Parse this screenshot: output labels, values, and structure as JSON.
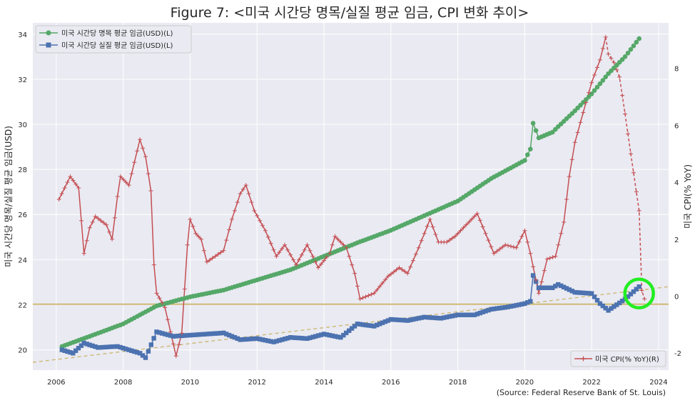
{
  "chart_data": {
    "type": "line",
    "title": "Figure 7: <미국 시간당 명목/실질 평균 임금, CPI 변화 추이>",
    "source": "(Source: Federal Reserve Bank of St. Louis)",
    "xlabel": "",
    "ylabel_left": "미국 시간당 명목/실질 평균 임금(USD)",
    "ylabel_right": "미국 CPI(% YoY)",
    "xlim": [
      2005.3,
      2024.3
    ],
    "ylim_left": [
      19.1,
      34.5
    ],
    "ylim_right": [
      -2.6,
      9.6
    ],
    "x_ticks": [
      2006,
      2008,
      2010,
      2012,
      2014,
      2016,
      2018,
      2020,
      2022,
      2024
    ],
    "y_ticks_left": [
      20,
      22,
      24,
      26,
      28,
      30,
      32,
      34
    ],
    "y_ticks_right": [
      -2,
      0,
      2,
      4,
      6,
      8
    ],
    "grid": true,
    "colors": {
      "nominal": "#55a868",
      "real": "#4c72b0",
      "cpi": "#c44e52",
      "trend": "#ccb974",
      "highlight": "#22ee22",
      "plot_bg": "#eaeaf2"
    },
    "legend_top_left": [
      "미국 시간당 명목 평균 임금(USD)(L)",
      "미국 시간당 실질 평균 임금(USD)(L)"
    ],
    "legend_bottom_right": [
      "미국 CPI(% YoY)(R)"
    ],
    "series": [
      {
        "name": "미국 시간당 명목 평균 임금(USD)(L)",
        "axis": "left",
        "marker": "circle",
        "points": [
          [
            2006.17,
            20.15
          ],
          [
            2007.0,
            20.6
          ],
          [
            2008.0,
            21.15
          ],
          [
            2009.0,
            21.95
          ],
          [
            2010.0,
            22.35
          ],
          [
            2011.0,
            22.65
          ],
          [
            2012.0,
            23.1
          ],
          [
            2013.0,
            23.55
          ],
          [
            2014.0,
            24.15
          ],
          [
            2015.0,
            24.75
          ],
          [
            2016.0,
            25.3
          ],
          [
            2017.0,
            25.95
          ],
          [
            2018.0,
            26.6
          ],
          [
            2019.0,
            27.6
          ],
          [
            2020.0,
            28.4
          ],
          [
            2020.17,
            28.9
          ],
          [
            2020.25,
            30.05
          ],
          [
            2020.42,
            29.4
          ],
          [
            2020.83,
            29.65
          ],
          [
            2021.0,
            29.9
          ],
          [
            2021.5,
            30.6
          ],
          [
            2022.0,
            31.35
          ],
          [
            2022.5,
            32.25
          ],
          [
            2023.0,
            33.0
          ],
          [
            2023.42,
            33.8
          ]
        ]
      },
      {
        "name": "미국 시간당 실질 평균 임금(USD)(L)",
        "axis": "left",
        "marker": "square",
        "points": [
          [
            2006.17,
            20.0
          ],
          [
            2006.5,
            19.85
          ],
          [
            2006.83,
            20.3
          ],
          [
            2007.25,
            20.1
          ],
          [
            2007.83,
            20.15
          ],
          [
            2008.5,
            19.85
          ],
          [
            2008.67,
            19.65
          ],
          [
            2009.0,
            20.8
          ],
          [
            2009.5,
            20.6
          ],
          [
            2010.0,
            20.65
          ],
          [
            2010.5,
            20.7
          ],
          [
            2011.0,
            20.75
          ],
          [
            2011.5,
            20.45
          ],
          [
            2012.0,
            20.5
          ],
          [
            2012.5,
            20.35
          ],
          [
            2013.0,
            20.55
          ],
          [
            2013.5,
            20.5
          ],
          [
            2014.0,
            20.7
          ],
          [
            2014.5,
            20.55
          ],
          [
            2015.0,
            21.15
          ],
          [
            2015.5,
            21.05
          ],
          [
            2016.0,
            21.35
          ],
          [
            2016.5,
            21.3
          ],
          [
            2017.0,
            21.45
          ],
          [
            2017.5,
            21.4
          ],
          [
            2018.0,
            21.55
          ],
          [
            2018.5,
            21.55
          ],
          [
            2019.0,
            21.8
          ],
          [
            2019.5,
            21.9
          ],
          [
            2020.0,
            22.05
          ],
          [
            2020.17,
            22.15
          ],
          [
            2020.25,
            23.3
          ],
          [
            2020.42,
            22.75
          ],
          [
            2020.83,
            22.75
          ],
          [
            2021.0,
            22.9
          ],
          [
            2021.5,
            22.55
          ],
          [
            2022.0,
            22.5
          ],
          [
            2022.25,
            22.05
          ],
          [
            2022.5,
            21.75
          ],
          [
            2023.0,
            22.25
          ],
          [
            2023.42,
            22.8
          ]
        ]
      },
      {
        "name": "미국 CPI(% YoY)(R)",
        "axis": "right",
        "marker": "plus",
        "points": [
          [
            2006.08,
            3.4
          ],
          [
            2006.42,
            4.2
          ],
          [
            2006.67,
            3.8
          ],
          [
            2006.83,
            1.5
          ],
          [
            2007.0,
            2.4
          ],
          [
            2007.17,
            2.8
          ],
          [
            2007.5,
            2.5
          ],
          [
            2007.67,
            2.0
          ],
          [
            2007.83,
            3.5
          ],
          [
            2007.92,
            4.2
          ],
          [
            2008.17,
            3.9
          ],
          [
            2008.5,
            5.5
          ],
          [
            2008.67,
            4.9
          ],
          [
            2008.83,
            3.7
          ],
          [
            2008.92,
            1.1
          ],
          [
            2009.0,
            0.1
          ],
          [
            2009.25,
            -0.4
          ],
          [
            2009.58,
            -2.1
          ],
          [
            2009.75,
            -1.3
          ],
          [
            2009.92,
            1.8
          ],
          [
            2010.0,
            2.7
          ],
          [
            2010.17,
            2.2
          ],
          [
            2010.33,
            2.0
          ],
          [
            2010.5,
            1.2
          ],
          [
            2011.0,
            1.6
          ],
          [
            2011.25,
            2.7
          ],
          [
            2011.5,
            3.6
          ],
          [
            2011.67,
            3.9
          ],
          [
            2011.92,
            3.0
          ],
          [
            2012.25,
            2.3
          ],
          [
            2012.58,
            1.4
          ],
          [
            2012.83,
            1.8
          ],
          [
            2013.17,
            1.1
          ],
          [
            2013.5,
            1.8
          ],
          [
            2013.83,
            1.0
          ],
          [
            2014.17,
            1.5
          ],
          [
            2014.33,
            2.1
          ],
          [
            2014.67,
            1.7
          ],
          [
            2014.92,
            0.8
          ],
          [
            2015.08,
            -0.1
          ],
          [
            2015.5,
            0.1
          ],
          [
            2015.92,
            0.7
          ],
          [
            2016.25,
            1.0
          ],
          [
            2016.5,
            0.8
          ],
          [
            2016.83,
            1.7
          ],
          [
            2017.17,
            2.7
          ],
          [
            2017.42,
            1.9
          ],
          [
            2017.67,
            1.9
          ],
          [
            2017.92,
            2.1
          ],
          [
            2018.25,
            2.5
          ],
          [
            2018.58,
            2.9
          ],
          [
            2018.83,
            2.2
          ],
          [
            2019.08,
            1.5
          ],
          [
            2019.42,
            1.8
          ],
          [
            2019.75,
            1.7
          ],
          [
            2020.0,
            2.3
          ],
          [
            2020.17,
            1.5
          ],
          [
            2020.42,
            0.1
          ],
          [
            2020.67,
            1.3
          ],
          [
            2020.92,
            1.4
          ],
          [
            2021.17,
            2.6
          ],
          [
            2021.33,
            4.2
          ],
          [
            2021.5,
            5.4
          ],
          [
            2021.83,
            6.8
          ],
          [
            2022.0,
            7.5
          ],
          [
            2022.25,
            8.3
          ],
          [
            2022.42,
            9.1
          ],
          [
            2022.5,
            8.5
          ],
          [
            2022.67,
            8.2
          ],
          [
            2022.83,
            7.7
          ],
          [
            2023.0,
            6.4
          ],
          [
            2023.17,
            5.0
          ],
          [
            2023.42,
            3.0
          ],
          [
            2023.5,
            0.2
          ],
          [
            2023.58,
            -0.1
          ]
        ]
      },
      {
        "name": "",
        "axis": "left",
        "style": "trend-dashed",
        "points": [
          [
            2005.3,
            19.45
          ],
          [
            2024.3,
            22.8
          ]
        ]
      },
      {
        "name": "",
        "axis": "left",
        "style": "reference-line",
        "points": [
          [
            2005.3,
            22.02
          ],
          [
            2024.3,
            22.02
          ]
        ]
      }
    ],
    "highlight": {
      "x": 2023.42,
      "y_left": 22.5
    }
  }
}
